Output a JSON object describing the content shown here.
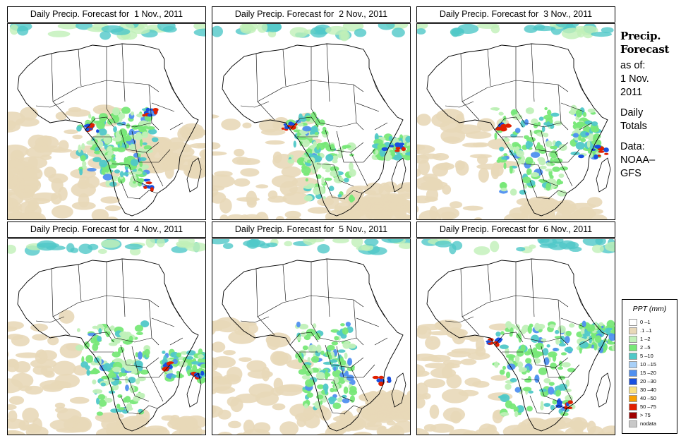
{
  "panels": [
    {
      "title": "Daily Precip. Forecast for  1 Nov., 2011"
    },
    {
      "title": "Daily Precip. Forecast for  2 Nov., 2011"
    },
    {
      "title": "Daily Precip. Forecast for  3 Nov., 2011"
    },
    {
      "title": "Daily Precip. Forecast for  4 Nov., 2011"
    },
    {
      "title": "Daily Precip. Forecast for  5 Nov., 2011"
    },
    {
      "title": "Daily Precip. Forecast for  6 Nov., 2011"
    }
  ],
  "sidebar": {
    "title1": "Precip.",
    "title2": "Forecast",
    "asof": "as of:",
    "date1": "1 Nov.",
    "date2": "2011",
    "daily1": "Daily",
    "daily2": "Totals",
    "data1": "Data:",
    "data2": "NOAA–",
    "data3": "GFS"
  },
  "legend": {
    "title": "PPT (mm)",
    "items": [
      {
        "label": "0 –1",
        "color": "#ffffff"
      },
      {
        "label": ".1 –1",
        "color": "#e8d8b8"
      },
      {
        "label": "1 –2",
        "color": "#c0f0b8"
      },
      {
        "label": "2 –5",
        "color": "#78e878"
      },
      {
        "label": "5 –10",
        "color": "#50c8c8"
      },
      {
        "label": "10 –15",
        "color": "#a8d0f8"
      },
      {
        "label": "15 –20",
        "color": "#5090f0"
      },
      {
        "label": "20 –30",
        "color": "#1850e0"
      },
      {
        "label": "30 –40",
        "color": "#f8e080"
      },
      {
        "label": "40 –50",
        "color": "#f8a000"
      },
      {
        "label": "50 –75",
        "color": "#e02000"
      },
      {
        "label": "> 75",
        "color": "#a00000"
      },
      {
        "label": "nodata",
        "color": "#c8c8c8"
      }
    ]
  },
  "colors": {
    "land": "#ffffff",
    "dry": "#e8d8b8",
    "light": "#c0f0b8",
    "moderate": "#78e878",
    "teal": "#50c8c8",
    "heavy": "#5090f0",
    "veryheavy": "#1850e0",
    "extreme": "#e02000",
    "border": "#000000"
  }
}
